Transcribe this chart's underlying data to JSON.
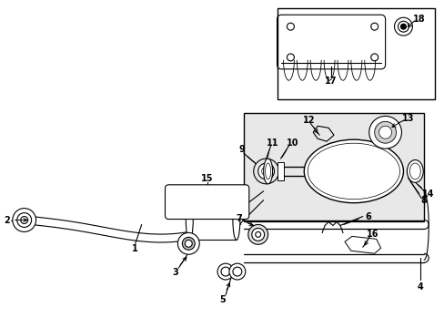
{
  "bg_color": "#ffffff",
  "line_color": "#000000",
  "inset_fill": "#e8e8e8",
  "lw": 0.8,
  "label_fs": 7.0
}
